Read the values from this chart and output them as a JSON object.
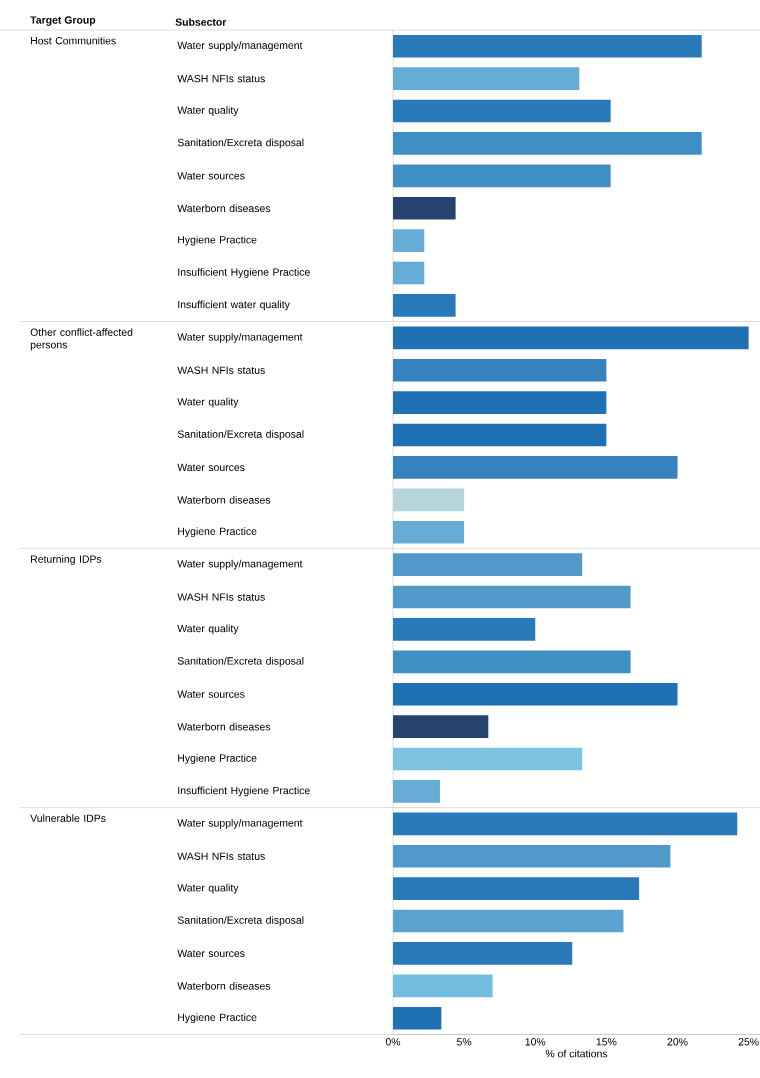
{
  "chart_data": {
    "type": "bar",
    "orientation": "horizontal",
    "xlabel": "% of citations",
    "annotations": [
      "Target Group",
      "Subsector",
      "Host Communities",
      "Other conflict-affected persons",
      "Returning IDPs",
      "Vulnerable IDPs"
    ],
    "categories": [
      "Water supply/management",
      "WASH NFIs status",
      "Water quality",
      "Sanitation/Excreta disposal",
      "Water sources",
      "Waterborn diseases",
      "Hygiene Practice",
      "Insufficient Hygiene Practice",
      "Insufficient water quality",
      "Water supply/management",
      "WASH NFIs status",
      "Water quality",
      "Sanitation/Excreta disposal",
      "Water sources",
      "Waterborn diseases",
      "Hygiene Practice",
      "Water supply/management",
      "WASH NFIs status",
      "Water quality",
      "Sanitation/Excreta disposal",
      "Water sources",
      "Waterborn diseases",
      "Hygiene Practice",
      "Insufficient Hygiene Practice",
      "Water supply/management",
      "WASH NFIs status",
      "Water quality",
      "Sanitation/Excreta disposal",
      "Water sources",
      "Waterborn diseases",
      "Hygiene Practice"
    ],
    "values": [
      21.7,
      13.1,
      15.3,
      21.7,
      15.3,
      4.4,
      2.2,
      2.2,
      4.4,
      25.0,
      15.0,
      15.0,
      15.0,
      20.0,
      5.0,
      5.0,
      13.3,
      16.7,
      10.0,
      16.7,
      20.0,
      6.7,
      13.3,
      3.3,
      24.2,
      19.5,
      17.3,
      16.2,
      12.6,
      7.0,
      3.4
    ],
    "colors": [
      "#2a7ab9",
      "#66acd6",
      "#2a7ab9",
      "#3f8ec4",
      "#3f8ec4",
      "#26426f",
      "#66acd6",
      "#66acd6",
      "#2a7ab9",
      "#1f71b3",
      "#3582be",
      "#1f71b3",
      "#1f71b3",
      "#3582be",
      "#b5d4da",
      "#66acd6",
      "#5099c8",
      "#5099c8",
      "#2a7ab9",
      "#3f8ec4",
      "#1f71b3",
      "#26426f",
      "#7cc3e2",
      "#66acd6",
      "#2a7ab9",
      "#5099c8",
      "#2a7ab9",
      "#5ba2cf",
      "#2a7ab9",
      "#72bde0",
      "#1f71b3"
    ],
    "xlim": [
      0,
      25.8
    ],
    "xticks": [
      {
        "value": 0,
        "label": "0%"
      },
      {
        "value": 5,
        "label": "5%"
      },
      {
        "value": 10,
        "label": "10%"
      },
      {
        "value": 15,
        "label": "15%"
      },
      {
        "value": 20,
        "label": "20%"
      },
      {
        "value": 25,
        "label": "25%"
      }
    ]
  }
}
